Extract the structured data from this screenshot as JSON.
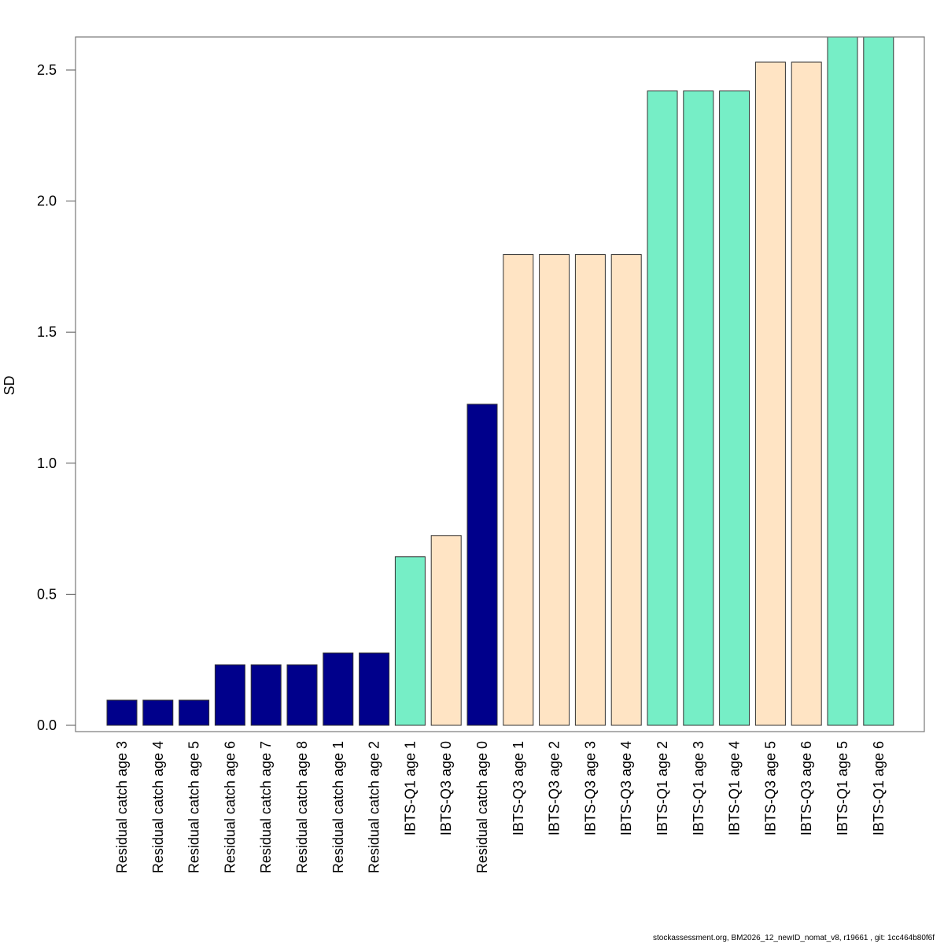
{
  "chart_data": {
    "type": "bar",
    "title": "",
    "xlabel": "",
    "ylabel": "SD",
    "ylim": [
      0,
      2.627
    ],
    "yticks": [
      0.0,
      0.5,
      1.0,
      1.5,
      2.0,
      2.5
    ],
    "ytick_labels": [
      "0.0",
      "0.5",
      "1.0",
      "1.5",
      "2.0",
      "2.5"
    ],
    "grid": false,
    "categories": [
      "Residual catch age 3",
      "Residual catch age 4",
      "Residual catch age 5",
      "Residual catch age 6",
      "Residual catch age 7",
      "Residual catch age 8",
      "Residual catch age 1",
      "Residual catch age 2",
      "IBTS-Q1 age 1",
      "IBTS-Q3 age 0",
      "Residual catch age 0",
      "IBTS-Q3 age 1",
      "IBTS-Q3 age 2",
      "IBTS-Q3 age 3",
      "IBTS-Q3 age 4",
      "IBTS-Q1 age 2",
      "IBTS-Q1 age 3",
      "IBTS-Q1 age 4",
      "IBTS-Q3 age 5",
      "IBTS-Q3 age 6",
      "IBTS-Q1 age 5",
      "IBTS-Q1 age 6"
    ],
    "values": [
      0.096,
      0.096,
      0.096,
      0.231,
      0.231,
      0.231,
      0.276,
      0.276,
      0.643,
      0.724,
      1.225,
      1.796,
      1.796,
      1.796,
      1.796,
      2.42,
      2.42,
      2.42,
      2.53,
      2.53,
      2.63,
      2.63
    ],
    "groups": [
      "catch",
      "catch",
      "catch",
      "catch",
      "catch",
      "catch",
      "catch",
      "catch",
      "IBTS-Q1",
      "IBTS-Q3",
      "catch",
      "IBTS-Q3",
      "IBTS-Q3",
      "IBTS-Q3",
      "IBTS-Q3",
      "IBTS-Q1",
      "IBTS-Q1",
      "IBTS-Q1",
      "IBTS-Q3",
      "IBTS-Q3",
      "IBTS-Q1",
      "IBTS-Q1"
    ],
    "colors": {
      "catch": "#00008B",
      "IBTS-Q1": "#76EEC6",
      "IBTS-Q3": "#FFE4C4"
    }
  },
  "footer": "stockassessment.org, BM2026_12_newID_nomat_v8, r19661 , git: 1cc464b80f6f"
}
